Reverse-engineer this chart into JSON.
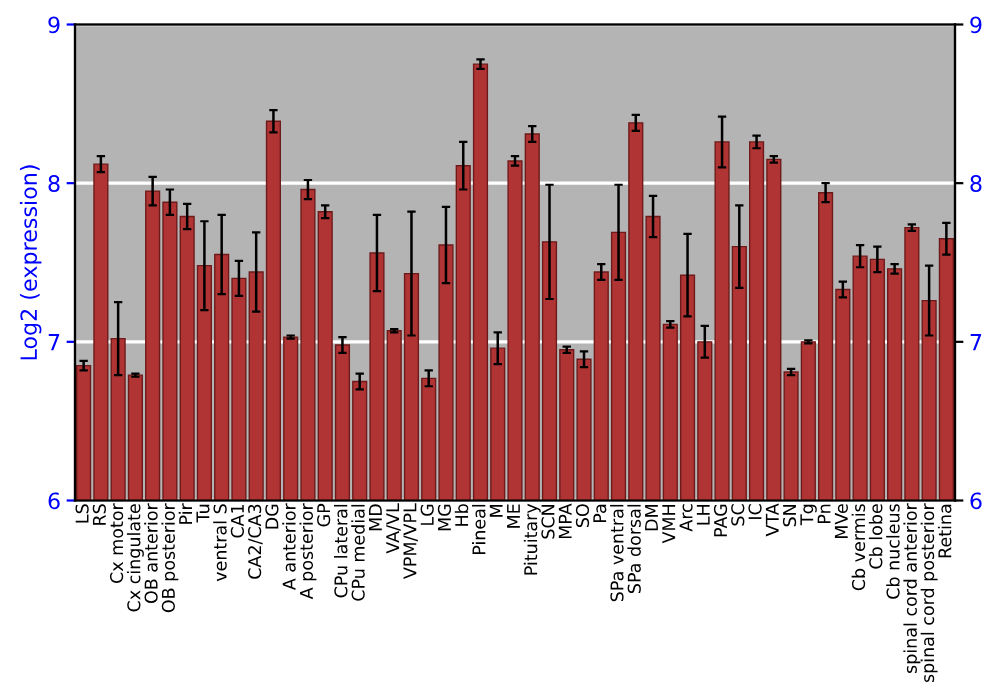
{
  "chart_data": {
    "type": "bar",
    "ylabel": "Log2 (expression)",
    "categories": [
      "LS",
      "RS",
      "Cx motor",
      "Cx cingulate",
      "OB anterior",
      "OB posterior",
      "Pir",
      "Tu",
      "ventral S",
      "CA1",
      "CA2/CA3",
      "DG",
      "A anterior",
      "A posterior",
      "GP",
      "CPu lateral",
      "CPu medial",
      "MD",
      "VA/VL",
      "VPM/VPL",
      "LG",
      "MG",
      "Hb",
      "Pineal",
      "M",
      "ME",
      "Pituitary",
      "SCN",
      "MPA",
      "SO",
      "Pa",
      "SPa ventral",
      "SPa dorsal",
      "DM",
      "VMH",
      "Arc",
      "LH",
      "PAG",
      "SC",
      "IC",
      "VTA",
      "SN",
      "Tg",
      "Pn",
      "MVe",
      "Cb vermis",
      "Cb lobe",
      "Cb nucleus",
      "spinal cord anterior",
      "spinal cord posterior",
      "Retina"
    ],
    "values": [
      6.85,
      8.12,
      7.02,
      6.79,
      7.95,
      7.88,
      7.79,
      7.48,
      7.55,
      7.4,
      7.44,
      8.39,
      7.03,
      7.96,
      7.82,
      6.98,
      6.75,
      7.56,
      7.07,
      7.43,
      6.77,
      7.61,
      8.11,
      8.75,
      6.96,
      8.14,
      8.31,
      7.63,
      6.95,
      6.89,
      7.44,
      7.69,
      8.38,
      7.79,
      7.11,
      7.42,
      7.0,
      8.26,
      7.6,
      8.26,
      8.15,
      6.81,
      7.0,
      7.94,
      7.33,
      7.54,
      7.52,
      7.46,
      7.72,
      7.26,
      7.65
    ],
    "errors": [
      0.03,
      0.05,
      0.23,
      0.01,
      0.09,
      0.08,
      0.08,
      0.28,
      0.25,
      0.11,
      0.25,
      0.07,
      0.01,
      0.06,
      0.04,
      0.05,
      0.05,
      0.24,
      0.01,
      0.39,
      0.05,
      0.24,
      0.15,
      0.03,
      0.1,
      0.03,
      0.05,
      0.36,
      0.02,
      0.05,
      0.05,
      0.3,
      0.05,
      0.13,
      0.02,
      0.26,
      0.1,
      0.16,
      0.26,
      0.04,
      0.02,
      0.02,
      0.01,
      0.06,
      0.05,
      0.07,
      0.08,
      0.03,
      0.02,
      0.22,
      0.1
    ],
    "color": "#b03434",
    "ylim": [
      6,
      9
    ],
    "yticks": [
      6,
      7,
      8,
      9
    ],
    "y2lim": [
      6,
      9
    ],
    "y2ticks": [
      6,
      7,
      8,
      9
    ],
    "grid": "y"
  }
}
